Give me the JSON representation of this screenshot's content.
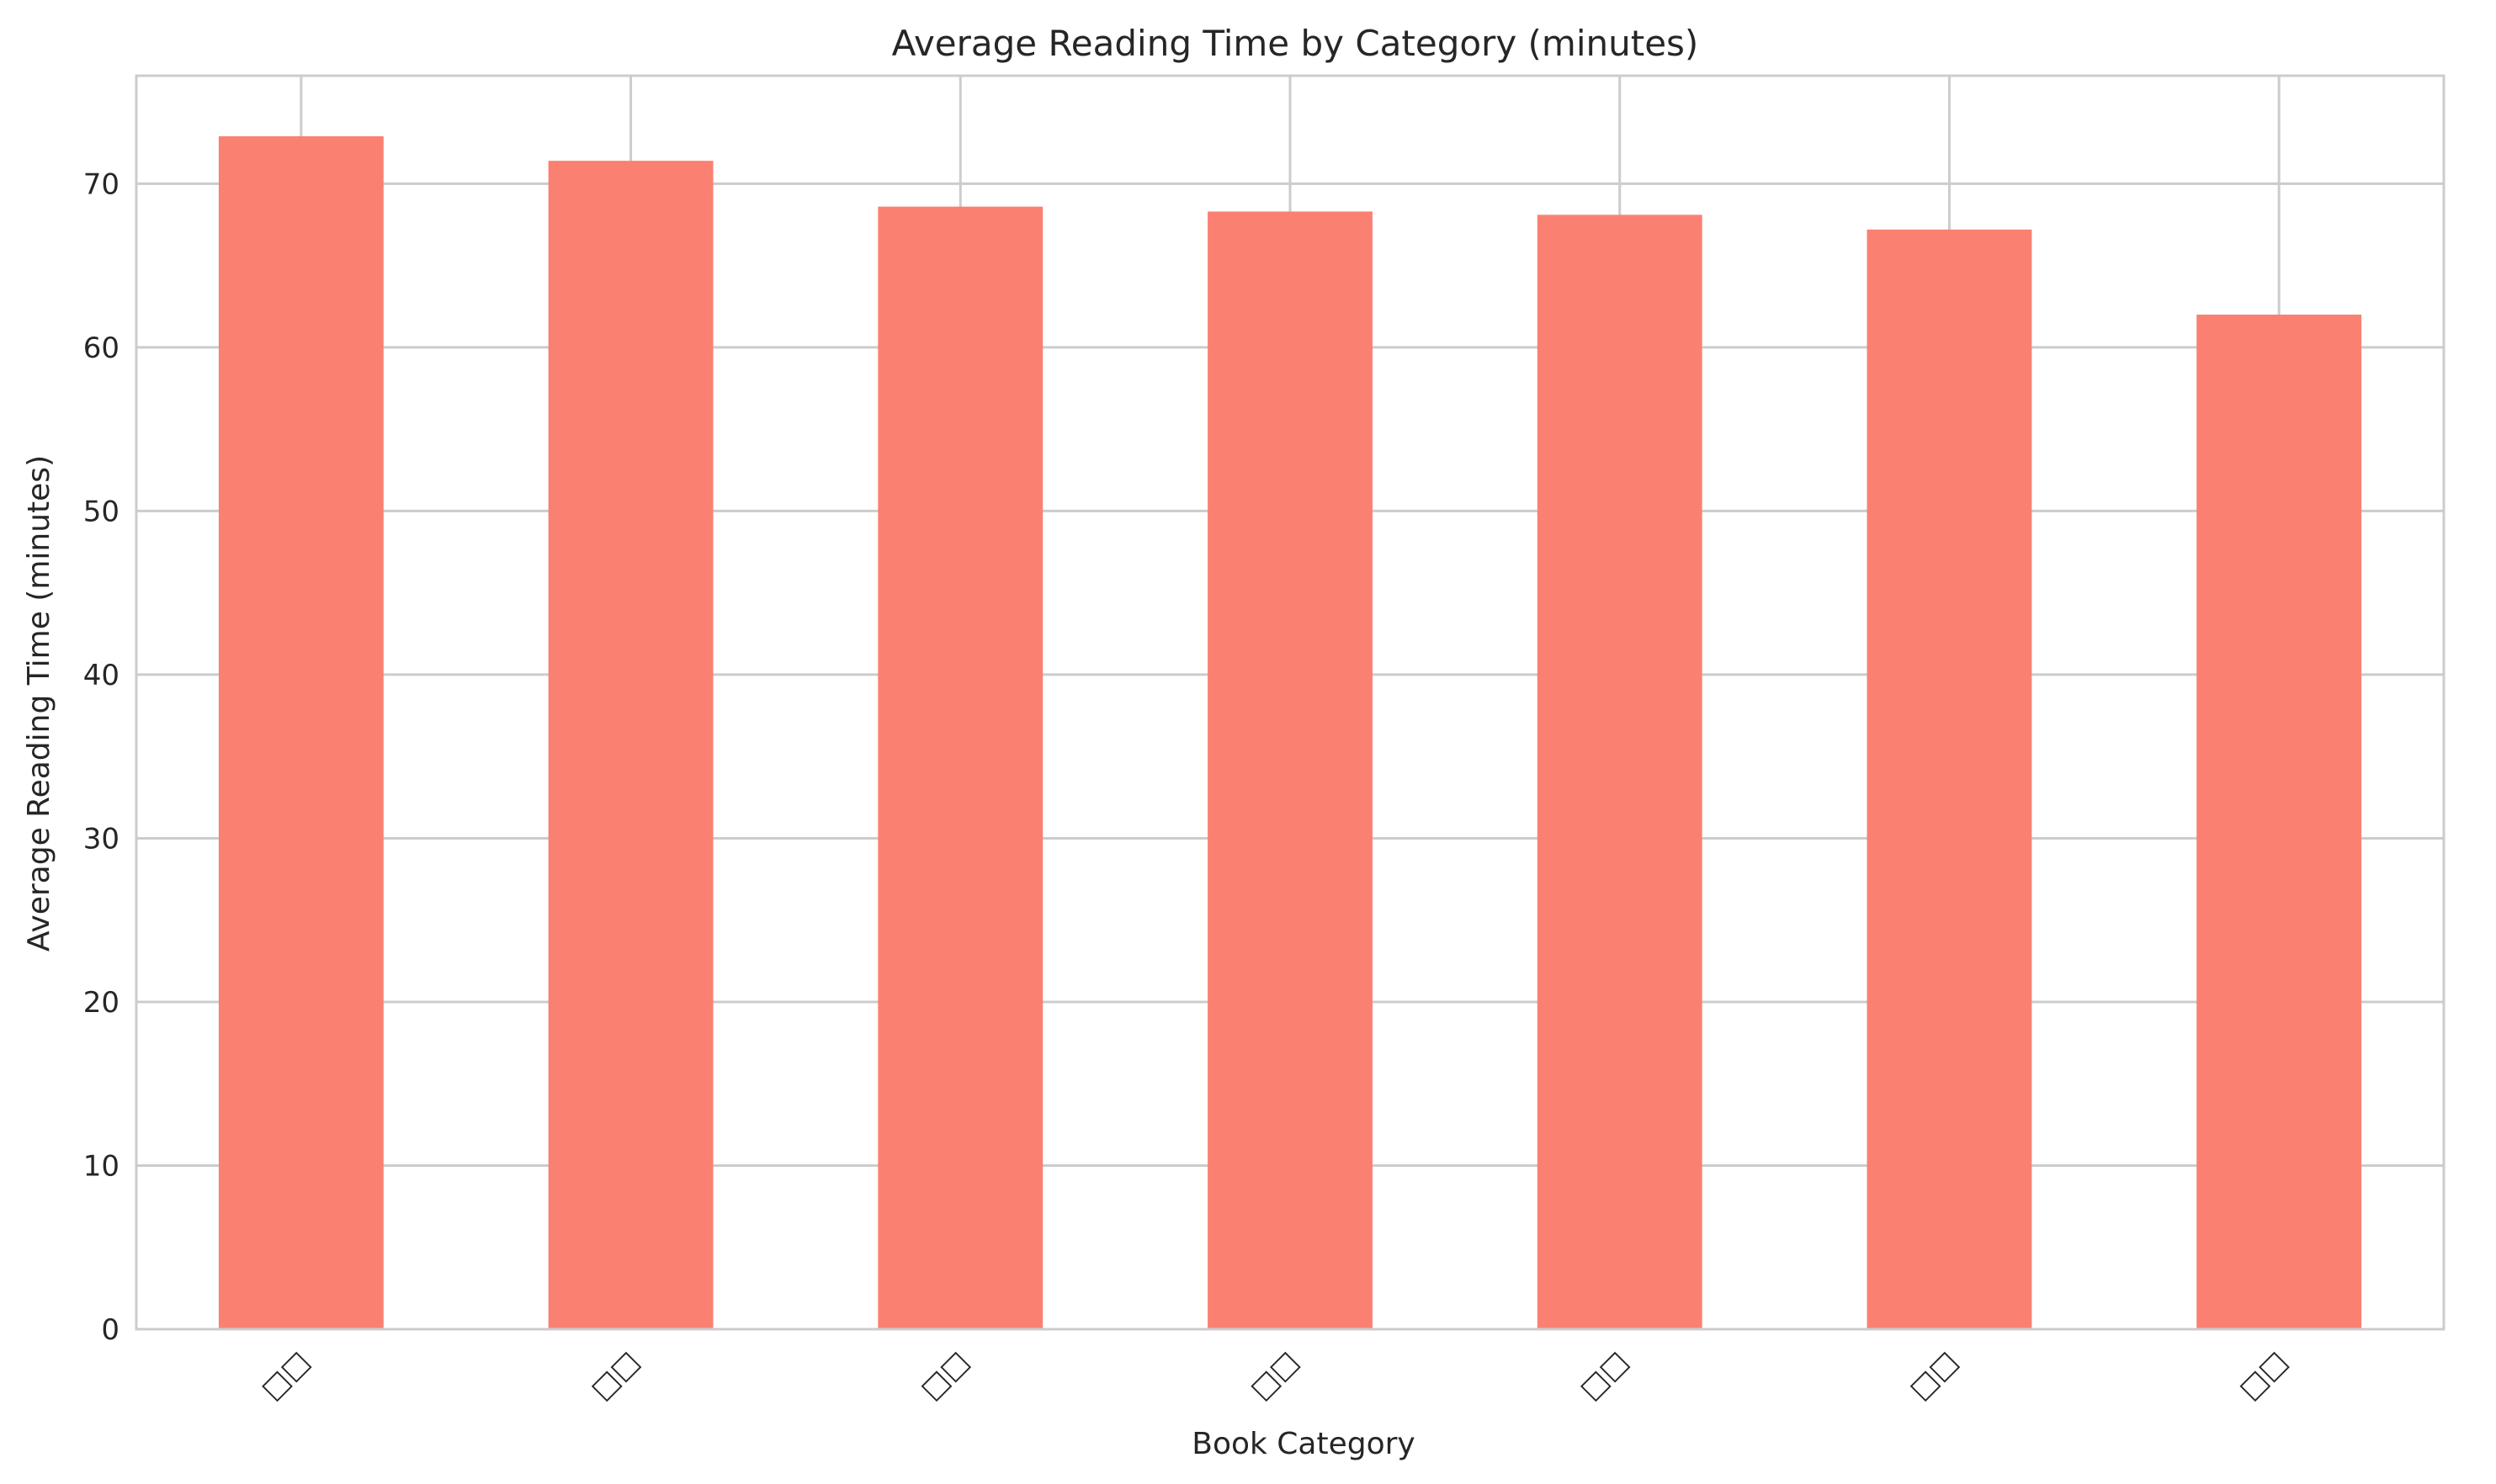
{
  "chart_data": {
    "type": "bar",
    "title": "Average Reading Time by Category (minutes)",
    "xlabel": "Book Category",
    "ylabel": "Average Reading Time (minutes)",
    "categories": [
      "□□",
      "□□",
      "□□",
      "□□",
      "□□",
      "□□",
      "□□"
    ],
    "values": [
      72.9,
      71.4,
      68.6,
      68.3,
      68.1,
      67.2,
      62.0
    ],
    "yticks": [
      0,
      10,
      20,
      30,
      40,
      50,
      60,
      70
    ],
    "ylim": [
      0,
      76.6
    ],
    "grid": true,
    "bar_color": "#FA8072",
    "x_tick_rotation": "45deg"
  }
}
